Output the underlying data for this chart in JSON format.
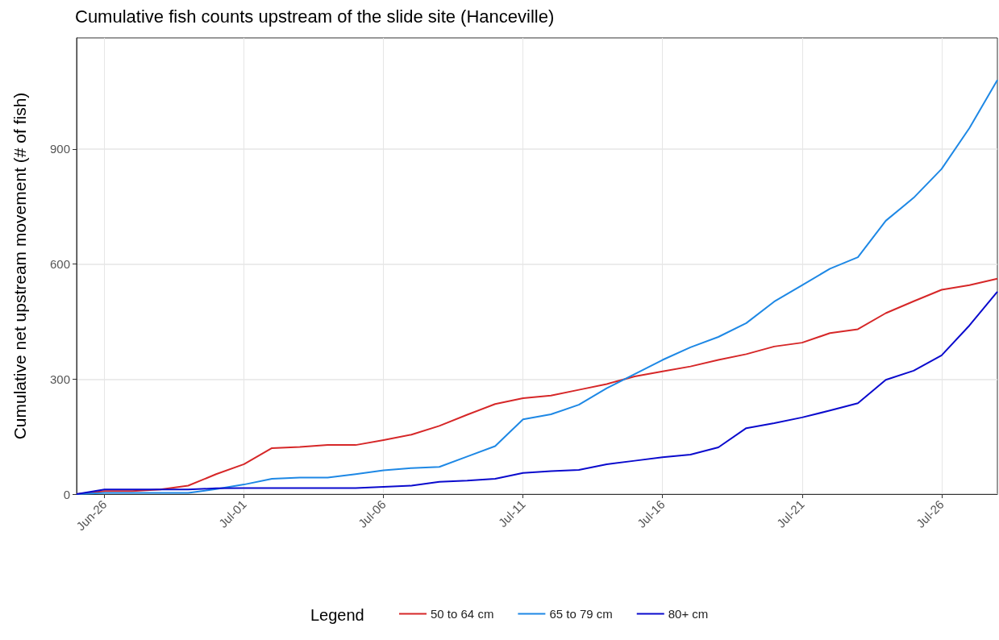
{
  "chart_data": {
    "type": "line",
    "title": "Cumulative fish counts upstream of the slide site (Hanceville)",
    "ylabel": "Cumulative net upstream movement (# of fish)",
    "legend_title": "Legend",
    "legend": "bottom",
    "grid": true,
    "x": [
      "--06-25",
      "--06-26",
      "--06-27",
      "--06-28",
      "--06-29",
      "--06-30",
      "--07-01",
      "--07-02",
      "--07-03",
      "--07-04",
      "--07-05",
      "--07-06",
      "--07-07",
      "--07-08",
      "--07-09",
      "--07-10",
      "--07-11",
      "--07-12",
      "--07-13",
      "--07-14",
      "--07-15",
      "--07-16",
      "--07-17",
      "--07-18",
      "--07-19",
      "--07-20",
      "--07-21",
      "--07-22",
      "--07-23",
      "--07-24",
      "--07-25",
      "--07-26",
      "--07-27",
      "--07-28"
    ],
    "xlim": [
      "--06-25",
      "--07-28"
    ],
    "xticks": [
      {
        "value": "--06-26",
        "label": "Jun-26"
      },
      {
        "value": "--07-01",
        "label": "Jul-01"
      },
      {
        "value": "--07-06",
        "label": "Jul-06"
      },
      {
        "value": "--07-11",
        "label": "Jul-11"
      },
      {
        "value": "--07-16",
        "label": "Jul-16"
      },
      {
        "value": "--07-21",
        "label": "Jul-21"
      },
      {
        "value": "--07-26",
        "label": "Jul-26"
      }
    ],
    "ylim": [
      0,
      1190
    ],
    "yticks": [
      0,
      300,
      600,
      900
    ],
    "series": [
      {
        "name": "50 to 64 cm",
        "color": "#d62728",
        "values": [
          0,
          8,
          8,
          12,
          22,
          52,
          78,
          120,
          123,
          128,
          128,
          141,
          155,
          178,
          207,
          235,
          250,
          257,
          272,
          287,
          307,
          320,
          333,
          350,
          365,
          385,
          395,
          420,
          430,
          472,
          503,
          533,
          545,
          562
        ]
      },
      {
        "name": "65 to 79 cm",
        "color": "#1e88e5",
        "values": [
          0,
          3,
          3,
          3,
          3,
          13,
          25,
          40,
          43,
          43,
          52,
          62,
          68,
          71,
          98,
          125,
          195,
          208,
          233,
          276,
          313,
          350,
          383,
          410,
          446,
          502,
          545,
          588,
          618,
          713,
          773,
          848,
          955,
          1080
        ]
      },
      {
        "name": "80+ cm",
        "color": "#0a0acd",
        "values": [
          0,
          12,
          12,
          12,
          12,
          15,
          16,
          16,
          16,
          16,
          16,
          19,
          22,
          32,
          35,
          40,
          55,
          60,
          63,
          78,
          87,
          96,
          103,
          122,
          172,
          185,
          200,
          218,
          237,
          298,
          322,
          362,
          440,
          528
        ]
      }
    ]
  }
}
